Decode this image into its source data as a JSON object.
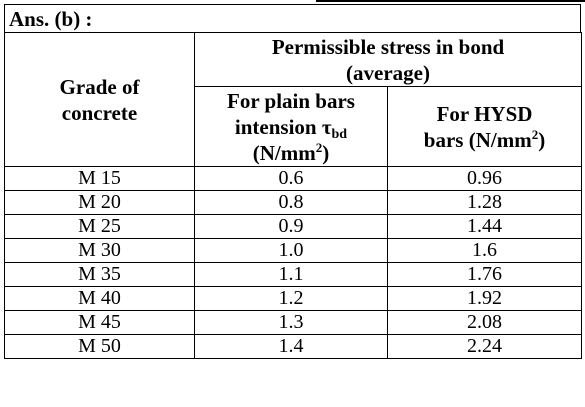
{
  "answer_label": "Ans. (b) :",
  "table": {
    "header": {
      "grade_col": [
        "Grade of",
        "concrete"
      ],
      "group_header": [
        "Permissible stress in bond",
        "(average)"
      ],
      "plain_bars": {
        "line1": "For plain bars",
        "line2_prefix": "intension τ",
        "line2_sub": "bd",
        "line3_prefix": "(N/mm",
        "line3_sup": "2",
        "line3_suffix": ")"
      },
      "hysd_bars": {
        "line1": "For HYSD",
        "line2_prefix": "bars (N/mm",
        "line2_sup": "2",
        "line2_suffix": ")"
      }
    },
    "rows": [
      {
        "grade": "M 15",
        "plain": "0.6",
        "hysd": "0.96"
      },
      {
        "grade": "M 20",
        "plain": "0.8",
        "hysd": "1.28"
      },
      {
        "grade": "M 25",
        "plain": "0.9",
        "hysd": "1.44"
      },
      {
        "grade": "M 30",
        "plain": "1.0",
        "hysd": "1.6"
      },
      {
        "grade": "M 35",
        "plain": "1.1",
        "hysd": "1.76"
      },
      {
        "grade": "M 40",
        "plain": "1.2",
        "hysd": "1.92"
      },
      {
        "grade": "M 45",
        "plain": "1.3",
        "hysd": "2.08"
      },
      {
        "grade": "M 50",
        "plain": "1.4",
        "hysd": "2.24"
      }
    ]
  }
}
